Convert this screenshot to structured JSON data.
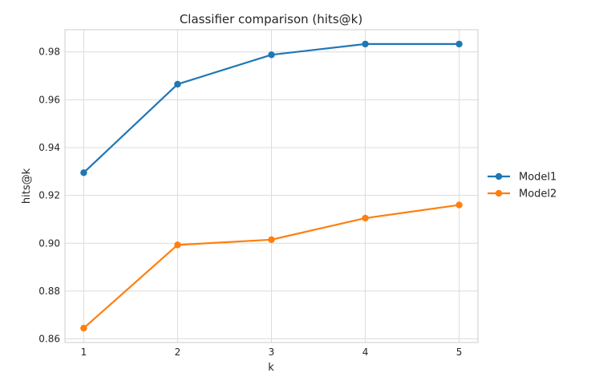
{
  "chart_data": {
    "type": "line",
    "title": "Classifier comparison (hits@k)",
    "xlabel": "k",
    "ylabel": "hits@k",
    "x": [
      1,
      2,
      3,
      4,
      5
    ],
    "x_tick_labels": [
      "1",
      "2",
      "3",
      "4",
      "5"
    ],
    "ylim": [
      0.8585,
      0.9893
    ],
    "y_ticks": [
      0.86,
      0.88,
      0.9,
      0.92,
      0.94,
      0.96,
      0.98
    ],
    "y_tick_labels": [
      "0.86",
      "0.88",
      "0.90",
      "0.92",
      "0.94",
      "0.96",
      "0.98"
    ],
    "grid": true,
    "legend_position": "right (outside plot)",
    "series": [
      {
        "name": "Model1",
        "color": "#1f77b4",
        "values": [
          0.9295,
          0.9665,
          0.9788,
          0.9833,
          0.9833
        ]
      },
      {
        "name": "Model2",
        "color": "#ff7f0e",
        "values": [
          0.8645,
          0.8993,
          0.9015,
          0.9105,
          0.916
        ]
      }
    ]
  }
}
